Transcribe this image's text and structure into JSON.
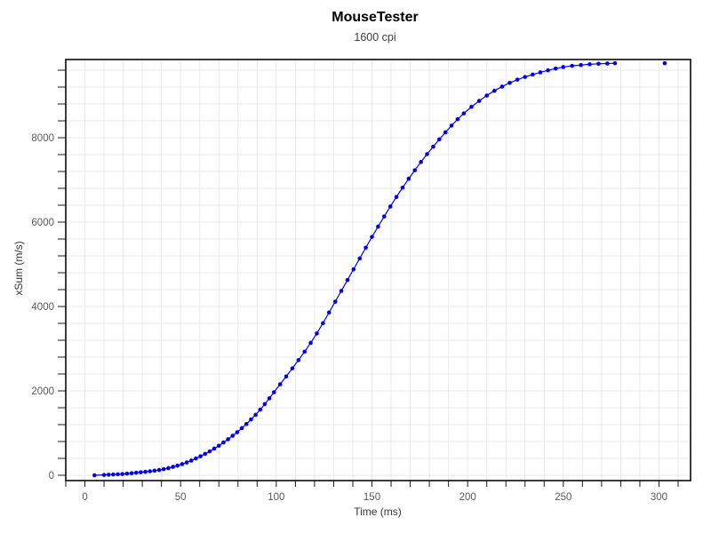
{
  "chart_data": {
    "type": "scatter-line",
    "title": "MouseTester",
    "subtitle": "1600 cpi",
    "xlabel": "Time (ms)",
    "ylabel": "xSum (m/s)",
    "xlim": [
      -10,
      316.5
    ],
    "ylim": [
      -126,
      9853
    ],
    "x_major_ticks": [
      0,
      50,
      100,
      150,
      200,
      250,
      300
    ],
    "x_minor_tick_step": 10,
    "y_major_ticks": [
      0,
      2000,
      4000,
      6000,
      8000
    ],
    "y_minor_tick_step": 400,
    "grid": true,
    "legend_position": "none",
    "series_color": "#0000f0",
    "grid_color": "#e9e9e9",
    "tick_label_color": "#595959",
    "points": [
      [
        5,
        0
      ],
      [
        10,
        8
      ],
      [
        12.4,
        13
      ],
      [
        14.8,
        18
      ],
      [
        17.2,
        23
      ],
      [
        19.6,
        29
      ],
      [
        22,
        39
      ],
      [
        24.4,
        49
      ],
      [
        26.8,
        60
      ],
      [
        29.2,
        71
      ],
      [
        31.6,
        83
      ],
      [
        34,
        95
      ],
      [
        36.4,
        109
      ],
      [
        38.8,
        125
      ],
      [
        41.2,
        145
      ],
      [
        43.6,
        170
      ],
      [
        46,
        198
      ],
      [
        48.4,
        229
      ],
      [
        50.8,
        264
      ],
      [
        53.2,
        304
      ],
      [
        55.6,
        348
      ],
      [
        58,
        398
      ],
      [
        60.4,
        450
      ],
      [
        62.8,
        507
      ],
      [
        65.2,
        566
      ],
      [
        67.6,
        633
      ],
      [
        70,
        700
      ],
      [
        72.4,
        777
      ],
      [
        74.8,
        854
      ],
      [
        77.2,
        937
      ],
      [
        79.6,
        1021
      ],
      [
        82,
        1117
      ],
      [
        84.4,
        1215
      ],
      [
        86.8,
        1323
      ],
      [
        89.2,
        1433
      ],
      [
        91.6,
        1556
      ],
      [
        94,
        1686
      ],
      [
        96.4,
        1824
      ],
      [
        98.8,
        1968
      ],
      [
        102,
        2156
      ],
      [
        105.2,
        2342
      ],
      [
        108.4,
        2534
      ],
      [
        111.6,
        2729
      ],
      [
        114.8,
        2928
      ],
      [
        118,
        3138
      ],
      [
        121.2,
        3361
      ],
      [
        124.4,
        3604
      ],
      [
        127.6,
        3858
      ],
      [
        130.8,
        4114
      ],
      [
        134,
        4370
      ],
      [
        137.2,
        4626
      ],
      [
        140.4,
        4882
      ],
      [
        143.6,
        5138
      ],
      [
        146.8,
        5394
      ],
      [
        150,
        5650
      ],
      [
        153.2,
        5893
      ],
      [
        156.4,
        6134
      ],
      [
        159.6,
        6370
      ],
      [
        162.8,
        6596
      ],
      [
        166,
        6816
      ],
      [
        169.2,
        7027
      ],
      [
        172.4,
        7229
      ],
      [
        175.6,
        7425
      ],
      [
        178.8,
        7610
      ],
      [
        182,
        7788
      ],
      [
        185.2,
        7960
      ],
      [
        188.4,
        8127
      ],
      [
        191.6,
        8287
      ],
      [
        194.8,
        8440
      ],
      [
        198,
        8576
      ],
      [
        202,
        8732
      ],
      [
        206,
        8872
      ],
      [
        210,
        9000
      ],
      [
        214,
        9112
      ],
      [
        218,
        9212
      ],
      [
        222,
        9300
      ],
      [
        226,
        9376
      ],
      [
        230,
        9440
      ],
      [
        234,
        9496
      ],
      [
        238,
        9549
      ],
      [
        242,
        9597
      ],
      [
        246,
        9639
      ],
      [
        250,
        9675
      ],
      [
        254.6,
        9703
      ],
      [
        259.2,
        9722
      ],
      [
        263.8,
        9740
      ],
      [
        268.4,
        9752
      ],
      [
        273,
        9759
      ],
      [
        277,
        9765
      ]
    ],
    "isolated_point": [
      303,
      9765
    ]
  }
}
